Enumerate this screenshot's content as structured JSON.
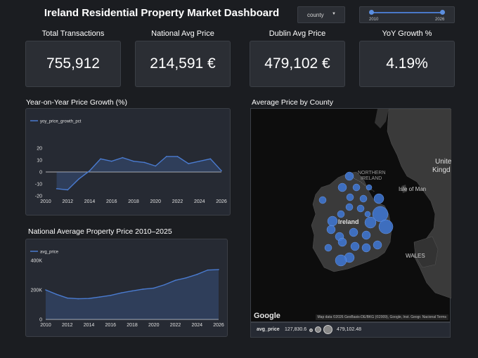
{
  "header": {
    "title": "Ireland Residential Property Market Dashboard"
  },
  "filters": {
    "dimension_dropdown": {
      "selected": "county"
    },
    "year_range": {
      "min_label": "2010",
      "max_label": "2026",
      "min": 2010,
      "max": 2026
    }
  },
  "kpis": [
    {
      "label": "Total Transactions",
      "value": "755,912"
    },
    {
      "label": "National Avg Price",
      "value": "214,591 €"
    },
    {
      "label": "Dublin Avg Price",
      "value": "479,102 €"
    },
    {
      "label": "YoY Growth %",
      "value": "4.19%"
    }
  ],
  "chart_yoy": {
    "section_title": "Year-on-Year Price Growth (%)"
  },
  "chart_avg": {
    "section_title": "National Average Property Price 2010–2025"
  },
  "map": {
    "section_title": "Average Price by County",
    "labels": {
      "northern_ireland_1": "NORTHERN",
      "northern_ireland_2": "IRELAND",
      "ireland": "Ireland",
      "isle_of_man": "Isle of Man",
      "wales": "WALES",
      "united_kingdom_1": "Unite",
      "united_kingdom_2": "Kingd"
    },
    "google_logo": "Google",
    "attribution": "Map data ©2026 GeoBasis-DE/BKG (©2009), Google, Inst. Geogr. Nacional  Terms",
    "legend": {
      "label": "avg_price",
      "min": "127,830.6",
      "max": "479,102.48"
    },
    "colors": {
      "bubble": "#3f78d6",
      "land": "#3a3a3a",
      "water": "#0d0d0d"
    }
  },
  "chart_data": [
    {
      "type": "area",
      "series": [
        {
          "name": "yoy_price_growth_pct",
          "x": [
            2011,
            2012,
            2013,
            2014,
            2015,
            2016,
            2017,
            2018,
            2019,
            2020,
            2021,
            2022,
            2023,
            2024,
            2025,
            2026
          ],
          "values": [
            -14,
            -15,
            -6,
            1,
            11,
            9,
            12,
            9,
            8,
            5,
            13,
            13,
            7,
            9,
            11,
            1
          ]
        }
      ],
      "x_ticks": [
        2010,
        2012,
        2014,
        2016,
        2018,
        2020,
        2022,
        2024,
        2026
      ],
      "y_ticks": [
        20,
        10,
        0,
        -10,
        -20
      ],
      "xlim": [
        2010,
        2026
      ],
      "ylim": [
        -20,
        20
      ],
      "legend": "top-left",
      "colors": {
        "line": "#4a7bd0"
      }
    },
    {
      "type": "area",
      "series": [
        {
          "name": "avg_price",
          "x": [
            2010,
            2011,
            2012,
            2013,
            2014,
            2015,
            2016,
            2017,
            2018,
            2019,
            2020,
            2021,
            2022,
            2023,
            2024,
            2025,
            2026
          ],
          "values": [
            200000,
            170000,
            145000,
            140000,
            142000,
            152000,
            163000,
            180000,
            193000,
            205000,
            212000,
            235000,
            265000,
            282000,
            305000,
            335000,
            338000
          ]
        }
      ],
      "x_ticks": [
        2010,
        2012,
        2014,
        2016,
        2018,
        2020,
        2022,
        2024,
        2026
      ],
      "y_ticks": [
        "400K",
        "200K",
        "0"
      ],
      "y_tick_values": [
        400000,
        200000,
        0
      ],
      "xlim": [
        2010,
        2026
      ],
      "ylim": [
        0,
        400000
      ],
      "legend": "top-left",
      "colors": {
        "line": "#4a7bd0"
      }
    }
  ]
}
